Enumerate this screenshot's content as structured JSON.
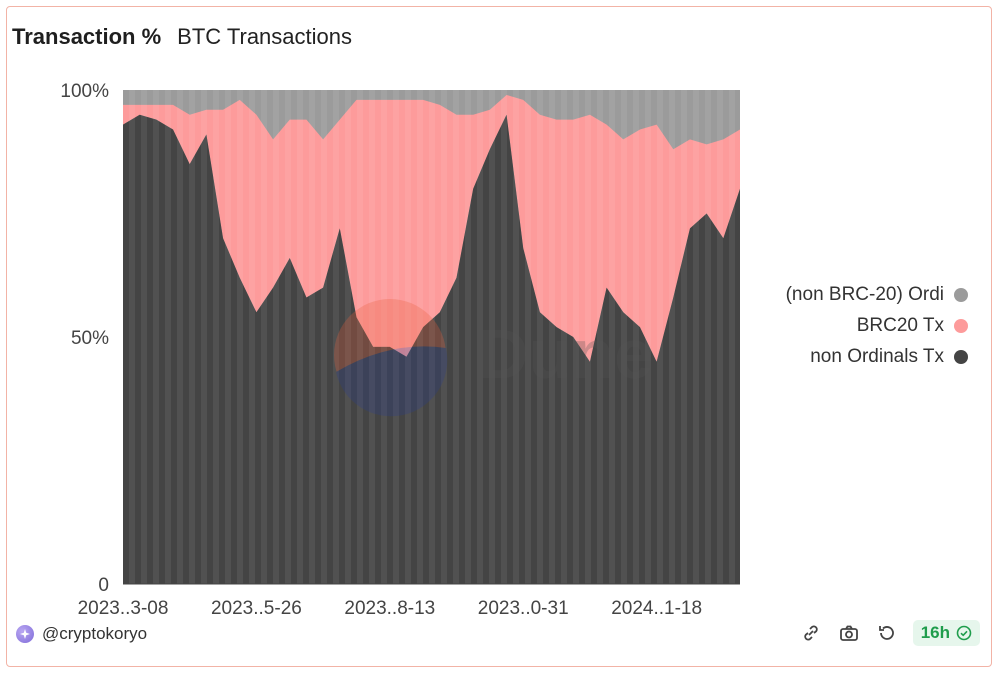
{
  "header": {
    "title": "Transaction %",
    "subtitle": "BTC Transactions"
  },
  "watermark": {
    "text": "Dune"
  },
  "footer": {
    "author": "@cryptokoryo",
    "freshness": "16h"
  },
  "icons": {
    "author": "author-avatar-icon",
    "embed": "embed-link-icon",
    "screenshot": "camera-icon",
    "refresh": "refresh-icon",
    "status": "check-circle-icon"
  },
  "colors": {
    "ordi": "#9b9b9b",
    "brc20": "#fd9b9b",
    "non_ordinals": "#444444",
    "badge_text": "#1f9d4c"
  },
  "chart_data": {
    "type": "area",
    "stacked": true,
    "normalized": true,
    "title": "Transaction %",
    "subtitle": "BTC Transactions",
    "y_ticks": [
      "0",
      "50%",
      "100%"
    ],
    "ylim": [
      0,
      100
    ],
    "x_tick_labels": [
      "2023..3-08",
      "2023..5-26",
      "2023..8-13",
      "2023..0-31",
      "2024..1-18"
    ],
    "legend_position": "right",
    "x": [
      "2023-03-08",
      "2023-03-18",
      "2023-03-28",
      "2023-04-07",
      "2023-04-17",
      "2023-04-27",
      "2023-05-07",
      "2023-05-17",
      "2023-05-26",
      "2023-06-05",
      "2023-06-15",
      "2023-06-25",
      "2023-07-05",
      "2023-07-15",
      "2023-07-25",
      "2023-08-04",
      "2023-08-13",
      "2023-08-23",
      "2023-09-02",
      "2023-09-12",
      "2023-09-22",
      "2023-10-02",
      "2023-10-12",
      "2023-10-22",
      "2023-10-31",
      "2023-11-10",
      "2023-11-20",
      "2023-11-30",
      "2023-12-10",
      "2023-12-20",
      "2023-12-30",
      "2024-01-09",
      "2024-01-18",
      "2024-01-28",
      "2024-02-07",
      "2024-02-17",
      "2024-02-27",
      "2024-03-08"
    ],
    "series": [
      {
        "name": "non Ordinals Tx",
        "color": "#444444",
        "values": [
          93,
          95,
          94,
          92,
          85,
          91,
          70,
          62,
          55,
          60,
          66,
          58,
          60,
          72,
          54,
          48,
          48,
          46,
          52,
          55,
          62,
          80,
          88,
          95,
          68,
          55,
          52,
          50,
          45,
          60,
          55,
          52,
          45,
          58,
          72,
          75,
          70,
          80
        ]
      },
      {
        "name": "BRC20 Tx",
        "color": "#fd9b9b",
        "values": [
          4,
          2,
          3,
          5,
          10,
          5,
          26,
          36,
          40,
          30,
          28,
          36,
          30,
          22,
          44,
          50,
          50,
          52,
          46,
          42,
          33,
          15,
          8,
          4,
          30,
          40,
          42,
          44,
          50,
          33,
          35,
          40,
          48,
          30,
          18,
          14,
          20,
          12
        ]
      },
      {
        "name": "(non BRC-20) Ordi",
        "color": "#9b9b9b",
        "values": [
          3,
          3,
          3,
          3,
          5,
          4,
          4,
          2,
          5,
          10,
          6,
          6,
          10,
          6,
          2,
          2,
          2,
          2,
          2,
          3,
          5,
          5,
          4,
          1,
          2,
          5,
          6,
          6,
          5,
          7,
          10,
          8,
          7,
          12,
          10,
          11,
          10,
          8
        ]
      }
    ]
  }
}
